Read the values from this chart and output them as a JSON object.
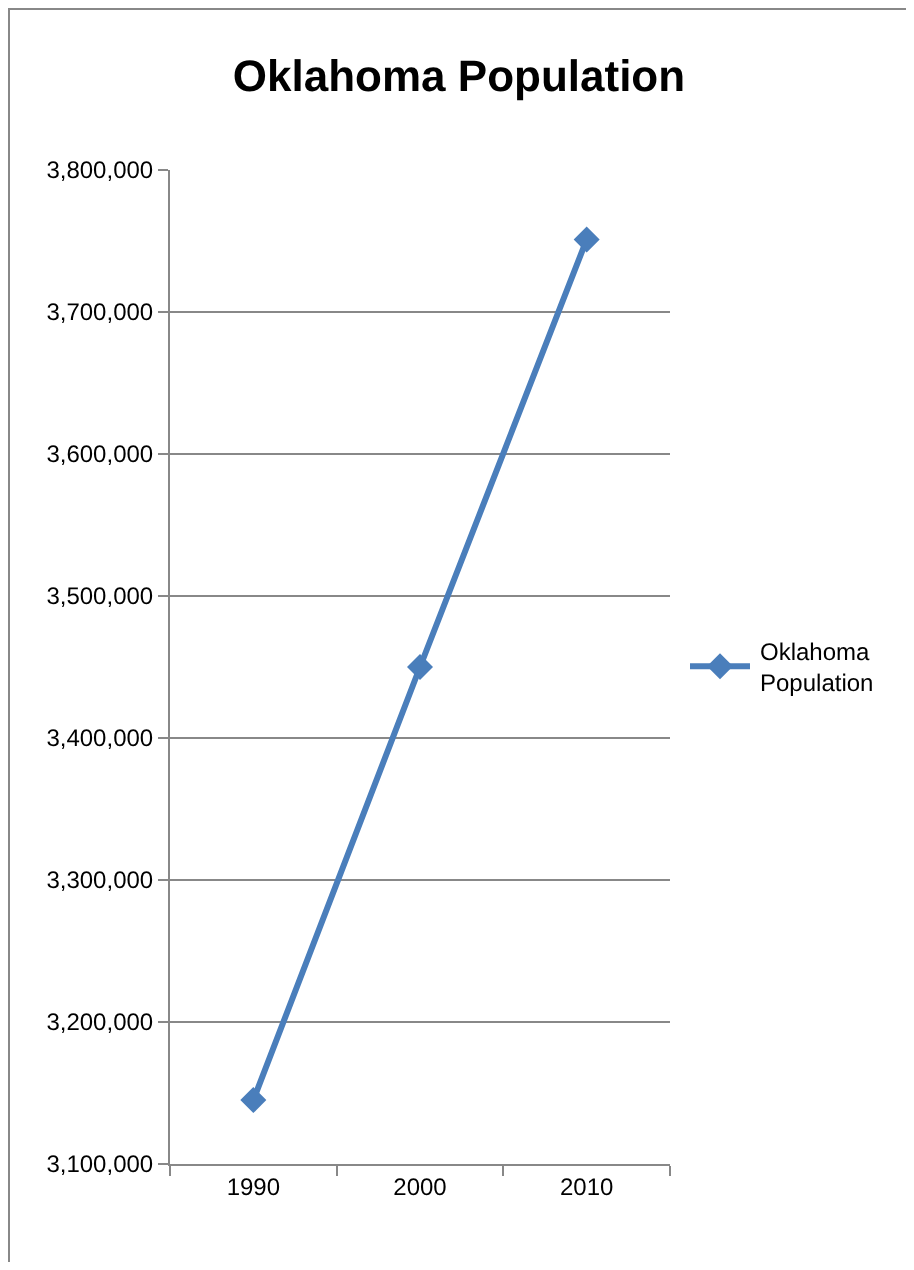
{
  "chart_data": {
    "type": "line",
    "title": "Oklahoma Population",
    "categories": [
      "1990",
      "2000",
      "2010"
    ],
    "series": [
      {
        "name": "Oklahoma Population",
        "color": "#4a7ebb",
        "values": [
          3145000,
          3450000,
          3751000
        ]
      }
    ],
    "ylim": [
      3100000,
      3800000
    ],
    "yticks": [
      {
        "value": 3100000,
        "label": "3,100,000"
      },
      {
        "value": 3200000,
        "label": "3,200,000"
      },
      {
        "value": 3300000,
        "label": "3,300,000"
      },
      {
        "value": 3400000,
        "label": "3,400,000"
      },
      {
        "value": 3500000,
        "label": "3,500,000"
      },
      {
        "value": 3600000,
        "label": "3,600,000"
      },
      {
        "value": 3700000,
        "label": "3,700,000"
      },
      {
        "value": 3800000,
        "label": "3,800,000"
      }
    ],
    "grid": "y",
    "legend": "right",
    "marker": "diamond",
    "line_style": "solid"
  }
}
